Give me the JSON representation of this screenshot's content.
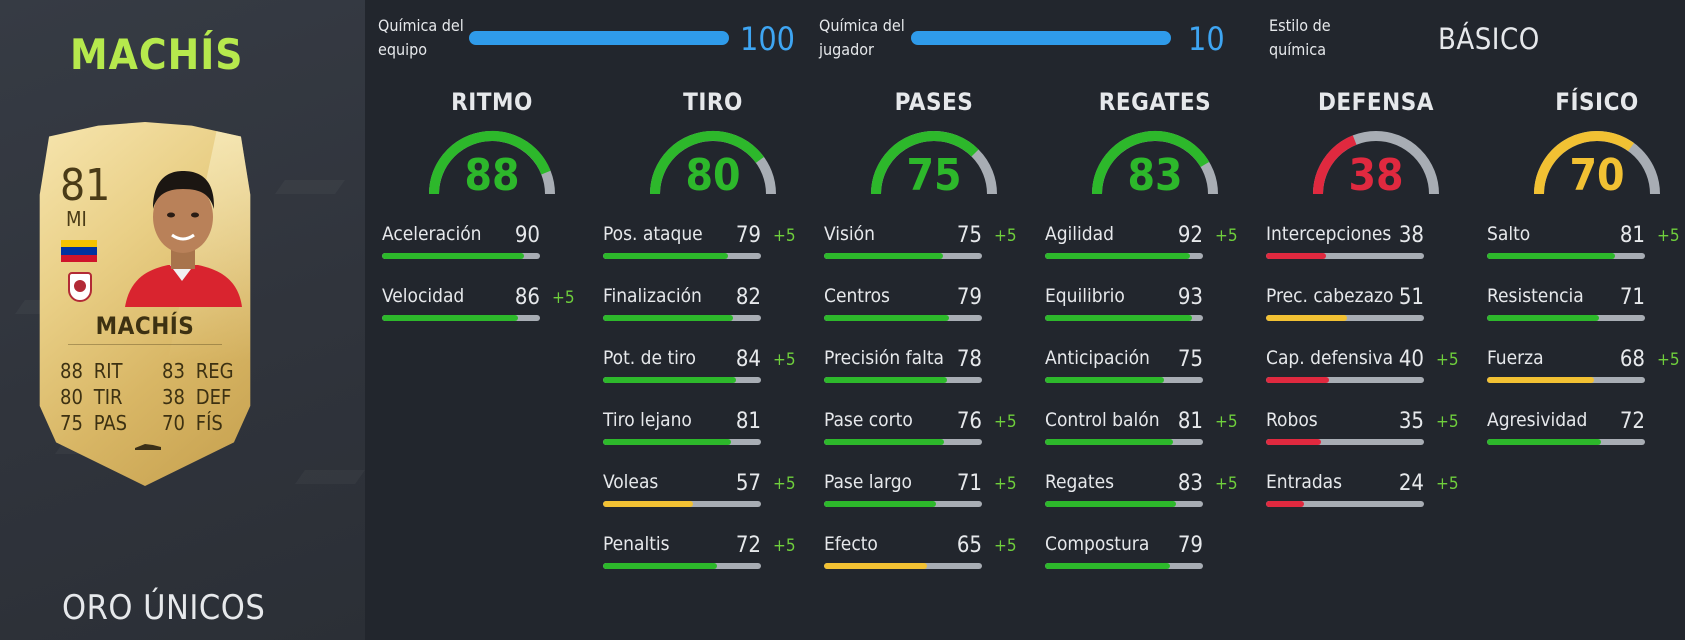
{
  "player_name": "MACHÍS",
  "card_type": "ORO ÚNICOS",
  "card": {
    "rating": "81",
    "position": "MI",
    "name": "MACHÍS",
    "stats_left": [
      [
        "88",
        "RIT"
      ],
      [
        "80",
        "TIR"
      ],
      [
        "75",
        "PAS"
      ]
    ],
    "stats_right": [
      [
        "83",
        "REG"
      ],
      [
        "38",
        "DEF"
      ],
      [
        "70",
        "FÍS"
      ]
    ]
  },
  "chemistry": {
    "team_label": "Química del\nequipo",
    "team_value": "100",
    "team_fill": 1.0,
    "player_label": "Química del\njugador",
    "player_value": "10",
    "player_fill": 1.0,
    "style_label": "Estilo de\nquímica",
    "style_value": "BÁSICO",
    "bar_color": "#2f9bea"
  },
  "colors": {
    "green": "#2db82b",
    "yellow": "#f2c133",
    "red": "#e0293f",
    "track": "#a8adb4",
    "bonus": "#6fcf3c",
    "accent_name": "#b6e94d"
  },
  "categories": [
    {
      "name": "RITMO",
      "value": 88,
      "color": "green",
      "stats": [
        {
          "name": "Aceleración",
          "value": 90,
          "bonus": ""
        },
        {
          "name": "Velocidad",
          "value": 86,
          "bonus": "+5"
        }
      ]
    },
    {
      "name": "TIRO",
      "value": 80,
      "color": "green",
      "stats": [
        {
          "name": "Pos. ataque",
          "value": 79,
          "bonus": "+5"
        },
        {
          "name": "Finalización",
          "value": 82,
          "bonus": ""
        },
        {
          "name": "Pot. de tiro",
          "value": 84,
          "bonus": "+5"
        },
        {
          "name": "Tiro lejano",
          "value": 81,
          "bonus": ""
        },
        {
          "name": "Voleas",
          "value": 57,
          "bonus": "+5"
        },
        {
          "name": "Penaltis",
          "value": 72,
          "bonus": "+5"
        }
      ]
    },
    {
      "name": "PASES",
      "value": 75,
      "color": "green",
      "stats": [
        {
          "name": "Visión",
          "value": 75,
          "bonus": "+5"
        },
        {
          "name": "Centros",
          "value": 79,
          "bonus": ""
        },
        {
          "name": "Precisión falta",
          "value": 78,
          "bonus": ""
        },
        {
          "name": "Pase corto",
          "value": 76,
          "bonus": "+5"
        },
        {
          "name": "Pase largo",
          "value": 71,
          "bonus": "+5"
        },
        {
          "name": "Efecto",
          "value": 65,
          "bonus": "+5"
        }
      ]
    },
    {
      "name": "REGATES",
      "value": 83,
      "color": "green",
      "stats": [
        {
          "name": "Agilidad",
          "value": 92,
          "bonus": "+5"
        },
        {
          "name": "Equilibrio",
          "value": 93,
          "bonus": ""
        },
        {
          "name": "Anticipación",
          "value": 75,
          "bonus": ""
        },
        {
          "name": "Control balón",
          "value": 81,
          "bonus": "+5"
        },
        {
          "name": "Regates",
          "value": 83,
          "bonus": "+5"
        },
        {
          "name": "Compostura",
          "value": 79,
          "bonus": ""
        }
      ]
    },
    {
      "name": "DEFENSA",
      "value": 38,
      "color": "red",
      "stats": [
        {
          "name": "Intercepciones",
          "value": 38,
          "bonus": ""
        },
        {
          "name": "Prec. cabezazo",
          "value": 51,
          "bonus": ""
        },
        {
          "name": "Cap. defensiva",
          "value": 40,
          "bonus": "+5"
        },
        {
          "name": "Robos",
          "value": 35,
          "bonus": "+5"
        },
        {
          "name": "Entradas",
          "value": 24,
          "bonus": "+5"
        }
      ]
    },
    {
      "name": "FÍSICO",
      "value": 70,
      "color": "yellow",
      "stats": [
        {
          "name": "Salto",
          "value": 81,
          "bonus": "+5"
        },
        {
          "name": "Resistencia",
          "value": 71,
          "bonus": ""
        },
        {
          "name": "Fuerza",
          "value": 68,
          "bonus": "+5"
        },
        {
          "name": "Agresividad",
          "value": 72,
          "bonus": ""
        }
      ]
    }
  ]
}
